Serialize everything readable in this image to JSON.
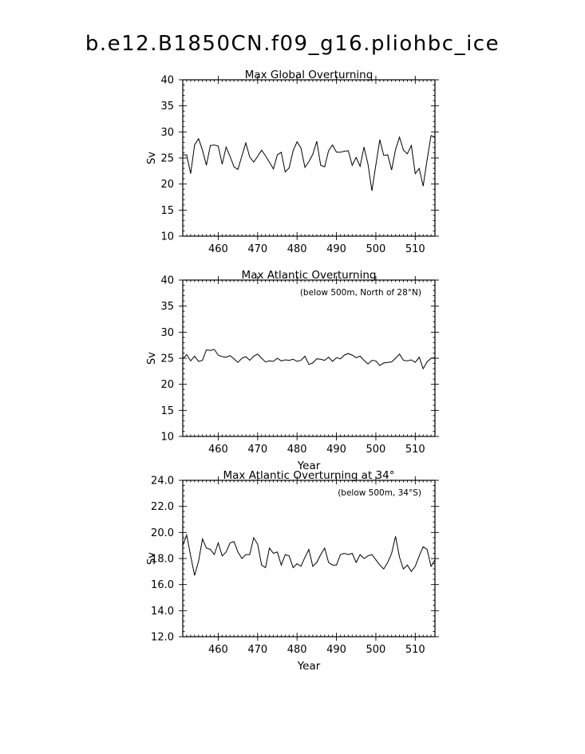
{
  "page_title": "b.e12.B1850CN.f09_g16.pliohbc_ice",
  "chart_data": [
    {
      "type": "line",
      "title": "Max Global Overturning",
      "annotation": "",
      "xlabel": "",
      "ylabel": "Sv",
      "xlim": [
        451,
        515
      ],
      "ylim": [
        10,
        40
      ],
      "xticks": [
        460,
        470,
        480,
        490,
        500,
        510
      ],
      "yticks": [
        "10",
        "15",
        "20",
        "25",
        "30",
        "35",
        "40"
      ],
      "x": [
        451,
        452,
        453,
        454,
        455,
        456,
        457,
        458,
        459,
        460,
        461,
        462,
        463,
        464,
        465,
        466,
        467,
        468,
        469,
        470,
        471,
        472,
        473,
        474,
        475,
        476,
        477,
        478,
        479,
        480,
        481,
        482,
        483,
        484,
        485,
        486,
        487,
        488,
        489,
        490,
        491,
        492,
        493,
        494,
        495,
        496,
        497,
        498,
        499,
        500,
        501,
        502,
        503,
        504,
        505,
        506,
        507,
        508,
        509,
        510,
        511,
        512,
        513,
        514,
        515
      ],
      "y": [
        25.6,
        25.6,
        22.0,
        27.5,
        28.7,
        26.5,
        23.6,
        27.4,
        27.5,
        27.3,
        23.8,
        27.1,
        25.3,
        23.3,
        22.8,
        25.4,
        27.9,
        25.2,
        24.2,
        25.3,
        26.5,
        25.4,
        24.2,
        22.9,
        25.6,
        26.1,
        22.3,
        23.1,
        26.4,
        28.1,
        26.9,
        23.2,
        24.3,
        25.7,
        28.2,
        23.6,
        23.3,
        26.4,
        27.5,
        26.1,
        26.1,
        26.3,
        26.4,
        23.6,
        25.1,
        23.4,
        27.1,
        23.8,
        18.7,
        23.6,
        28.5,
        25.5,
        25.6,
        22.7,
        26.6,
        29.0,
        26.5,
        25.8,
        27.4,
        22.0,
        23.0,
        19.6,
        24.6,
        29.3,
        29.0
      ]
    },
    {
      "type": "line",
      "title": "Max Atlantic Overturning",
      "annotation": "(below 500m, North of 28°N)",
      "xlabel": "Year",
      "ylabel": "Sv",
      "xlim": [
        451,
        515
      ],
      "ylim": [
        10,
        40
      ],
      "xticks": [
        460,
        470,
        480,
        490,
        500,
        510
      ],
      "yticks": [
        "10",
        "15",
        "20",
        "25",
        "30",
        "35",
        "40"
      ],
      "x": [
        451,
        452,
        453,
        454,
        455,
        456,
        457,
        458,
        459,
        460,
        461,
        462,
        463,
        464,
        465,
        466,
        467,
        468,
        469,
        470,
        471,
        472,
        473,
        474,
        475,
        476,
        477,
        478,
        479,
        480,
        481,
        482,
        483,
        484,
        485,
        486,
        487,
        488,
        489,
        490,
        491,
        492,
        493,
        494,
        495,
        496,
        497,
        498,
        499,
        500,
        501,
        502,
        503,
        504,
        505,
        506,
        507,
        508,
        509,
        510,
        511,
        512,
        513,
        514,
        515
      ],
      "y": [
        24.9,
        25.7,
        24.5,
        25.4,
        24.4,
        24.6,
        26.6,
        26.5,
        26.7,
        25.6,
        25.3,
        25.2,
        25.5,
        24.9,
        24.2,
        25.0,
        25.3,
        24.6,
        25.4,
        25.8,
        25.0,
        24.3,
        24.5,
        24.4,
        25.0,
        24.5,
        24.7,
        24.6,
        24.8,
        24.4,
        24.6,
        25.4,
        23.8,
        24.1,
        24.9,
        24.8,
        24.6,
        25.2,
        24.4,
        25.1,
        24.9,
        25.6,
        25.9,
        25.6,
        25.1,
        25.4,
        24.6,
        23.9,
        24.6,
        24.5,
        23.6,
        24.1,
        24.2,
        24.3,
        25.0,
        25.8,
        24.6,
        24.5,
        24.7,
        24.2,
        25.2,
        23.0,
        24.3,
        25.0,
        25.1
      ]
    },
    {
      "type": "line",
      "title": "Max Atlantic Overturning at 34°",
      "annotation": "(below 500m, 34°S)",
      "xlabel": "Year",
      "ylabel": "Sv",
      "xlim": [
        451,
        515
      ],
      "ylim": [
        12,
        24
      ],
      "xticks": [
        460,
        470,
        480,
        490,
        500,
        510
      ],
      "yticks": [
        "12.0",
        "14.0",
        "16.0",
        "18.0",
        "20.0",
        "22.0",
        "24.0"
      ],
      "x": [
        451,
        452,
        453,
        454,
        455,
        456,
        457,
        458,
        459,
        460,
        461,
        462,
        463,
        464,
        465,
        466,
        467,
        468,
        469,
        470,
        471,
        472,
        473,
        474,
        475,
        476,
        477,
        478,
        479,
        480,
        481,
        482,
        483,
        484,
        485,
        486,
        487,
        488,
        489,
        490,
        491,
        492,
        493,
        494,
        495,
        496,
        497,
        498,
        499,
        500,
        501,
        502,
        503,
        504,
        505,
        506,
        507,
        508,
        509,
        510,
        511,
        512,
        513,
        514,
        515
      ],
      "y": [
        19.0,
        19.8,
        18.2,
        16.7,
        17.8,
        19.5,
        18.8,
        18.7,
        18.3,
        19.2,
        18.2,
        18.5,
        19.2,
        19.3,
        18.5,
        18.0,
        18.3,
        18.3,
        19.6,
        19.1,
        17.5,
        17.3,
        18.8,
        18.4,
        18.5,
        17.5,
        18.3,
        18.2,
        17.3,
        17.6,
        17.4,
        18.1,
        18.7,
        17.4,
        17.7,
        18.3,
        18.8,
        17.7,
        17.5,
        17.5,
        18.3,
        18.4,
        18.3,
        18.4,
        17.7,
        18.3,
        18.0,
        18.2,
        18.3,
        17.9,
        17.5,
        17.2,
        17.7,
        18.4,
        19.7,
        18.1,
        17.2,
        17.5,
        17.0,
        17.4,
        18.2,
        18.9,
        18.7,
        17.4,
        17.9
      ]
    }
  ]
}
